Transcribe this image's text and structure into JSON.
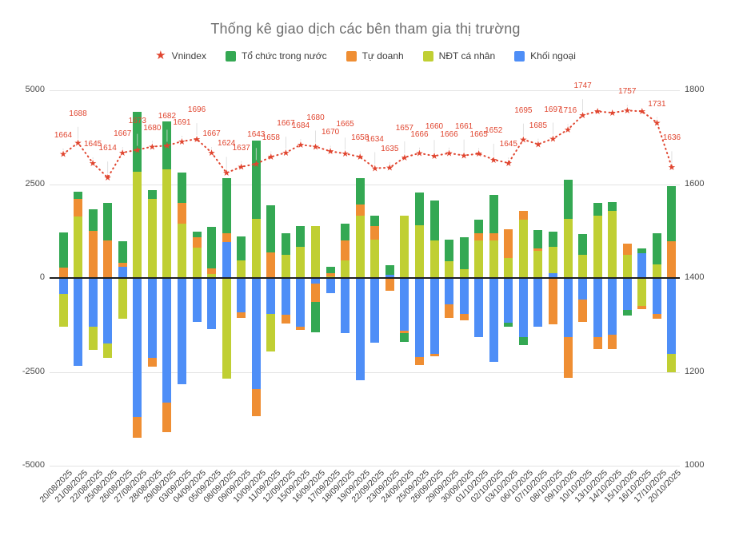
{
  "title": "Thống kê giao dịch các bên tham gia thị trường",
  "legend": {
    "items": [
      {
        "label": "Vnindex",
        "marker": "star"
      },
      {
        "label": "Tổ chức trong nước",
        "marker": "square"
      },
      {
        "label": "Tự doanh",
        "marker": "square"
      },
      {
        "label": "NĐT cá nhân",
        "marker": "square"
      },
      {
        "label": "Khối ngoại",
        "marker": "square"
      }
    ]
  },
  "colors": {
    "vnindex_red": "#e0452f",
    "to_chuc_green": "#34a853",
    "tu_doanh_orange": "#ef8e33",
    "ca_nhan_yellow": "#c0cf33",
    "khoi_ngoai_blue": "#4e8ef7",
    "grid": "#e4e4e4",
    "zero_axis": "#1f1f1f",
    "title_gray": "#6e6e6e"
  },
  "chart_data": {
    "type": "bar",
    "subtype": "stacked-bar-with-line-overlay",
    "title": "Thống kê giao dịch các bên tham gia thị trường",
    "xlabel": "",
    "ylabel": "",
    "grid": "horizontal",
    "legend_position": "top",
    "left_axis": {
      "ticks": [
        5000,
        2500,
        0,
        -2500,
        -5000
      ],
      "range": [
        -5000,
        5000
      ]
    },
    "right_axis": {
      "ticks": [
        1800,
        1600,
        1400,
        1200,
        1000
      ],
      "range": [
        1000,
        1800
      ]
    },
    "categories": [
      "20/08/2025",
      "21/08/2025",
      "22/08/2025",
      "25/08/2025",
      "26/08/2025",
      "27/08/2025",
      "28/08/2025",
      "29/08/2025",
      "03/09/2025",
      "04/09/2025",
      "05/09/2025",
      "08/09/2025",
      "09/09/2025",
      "10/09/2025",
      "11/09/2025",
      "12/09/2025",
      "15/09/2025",
      "16/09/2025",
      "17/09/2025",
      "18/09/2025",
      "19/09/2025",
      "22/09/2025",
      "23/09/2025",
      "24/09/2025",
      "25/09/2025",
      "26/09/2025",
      "29/09/2025",
      "30/09/2025",
      "01/10/2025",
      "02/10/2025",
      "03/10/2025",
      "06/10/2025",
      "07/10/2025",
      "08/10/2025",
      "09/10/2025",
      "10/10/2025",
      "13/10/2025",
      "14/10/2025",
      "15/10/2025",
      "16/10/2025",
      "17/10/2025",
      "20/10/2025"
    ],
    "series": [
      {
        "name": "Tổ chức trong nước",
        "color": "#34a853",
        "values": [
          930,
          190,
          580,
          1000,
          560,
          1590,
          240,
          1280,
          800,
          150,
          1110,
          1460,
          630,
          2080,
          1250,
          590,
          560,
          -810,
          170,
          450,
          690,
          290,
          240,
          -250,
          870,
          1080,
          590,
          850,
          350,
          1010,
          -100,
          -210,
          490,
          420,
          1040,
          560,
          350,
          240,
          -140,
          140,
          830,
          1480
        ]
      },
      {
        "name": "Tự doanh",
        "color": "#ef8e33",
        "values": [
          280,
          480,
          1250,
          1000,
          120,
          -560,
          -230,
          -800,
          560,
          270,
          160,
          240,
          -150,
          -730,
          680,
          -230,
          -100,
          -480,
          90,
          520,
          310,
          350,
          -330,
          -60,
          -210,
          -60,
          -350,
          -170,
          210,
          210,
          760,
          240,
          50,
          -1230,
          -1080,
          -590,
          -310,
          -380,
          310,
          -100,
          -140,
          970
        ]
      },
      {
        "name": "NĐT cá nhân",
        "color": "#c0cf33",
        "values": [
          -870,
          1630,
          -630,
          -380,
          -1080,
          2830,
          2100,
          2900,
          1440,
          810,
          100,
          -2690,
          470,
          1580,
          -1010,
          610,
          820,
          1380,
          40,
          470,
          1650,
          1030,
          0,
          1670,
          1410,
          990,
          440,
          230,
          990,
          990,
          540,
          1550,
          730,
          690,
          1580,
          610,
          1650,
          1790,
          610,
          -740,
          370,
          -490
        ]
      },
      {
        "name": "Khối ngoại",
        "color": "#4e8ef7",
        "values": [
          -430,
          -2330,
          -1290,
          -1740,
          290,
          -3700,
          -2130,
          -3310,
          -2820,
          -1160,
          -1370,
          960,
          -920,
          -2960,
          -950,
          -980,
          -1290,
          -150,
          -400,
          -1470,
          -2720,
          -1720,
          90,
          -1400,
          -2100,
          -2030,
          -710,
          -950,
          -1580,
          -2240,
          -1190,
          -1580,
          -1300,
          130,
          -1580,
          -570,
          -1580,
          -1510,
          -850,
          650,
          -950,
          -2030
        ]
      }
    ],
    "line_series": {
      "name": "Vnindex",
      "color": "#e0452f",
      "axis": "right",
      "values": [
        1664,
        1688,
        1645,
        1614,
        1667,
        1673,
        1680,
        1682,
        1691,
        1696,
        1667,
        1624,
        1637,
        1643,
        1658,
        1667,
        1684,
        1680,
        1670,
        1665,
        1658,
        1634,
        1635,
        1657,
        1666,
        1660,
        1666,
        1661,
        1665,
        1652,
        1645,
        1695,
        1685,
        1697,
        1716,
        1747,
        1755,
        1752,
        1757,
        1755,
        1731,
        1636
      ],
      "hidden_label_indices": [
        36,
        37,
        39
      ]
    }
  }
}
